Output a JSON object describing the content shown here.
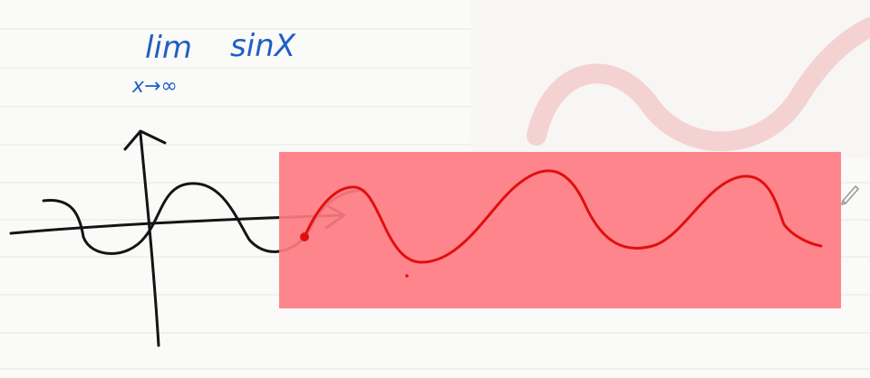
{
  "note": {
    "expression": {
      "limit_word": "lim",
      "limit_subscript": "x→∞",
      "function": "sinX"
    }
  },
  "colors": {
    "paper": "#fafaf8",
    "rule_line": "#e6e6e6",
    "ink_blue": "#1f5fc4",
    "ink_black": "#141414",
    "ink_red": "#e01010",
    "highlight": "#ff7b82"
  },
  "tools": {
    "pen_icon": "pencil-icon"
  }
}
